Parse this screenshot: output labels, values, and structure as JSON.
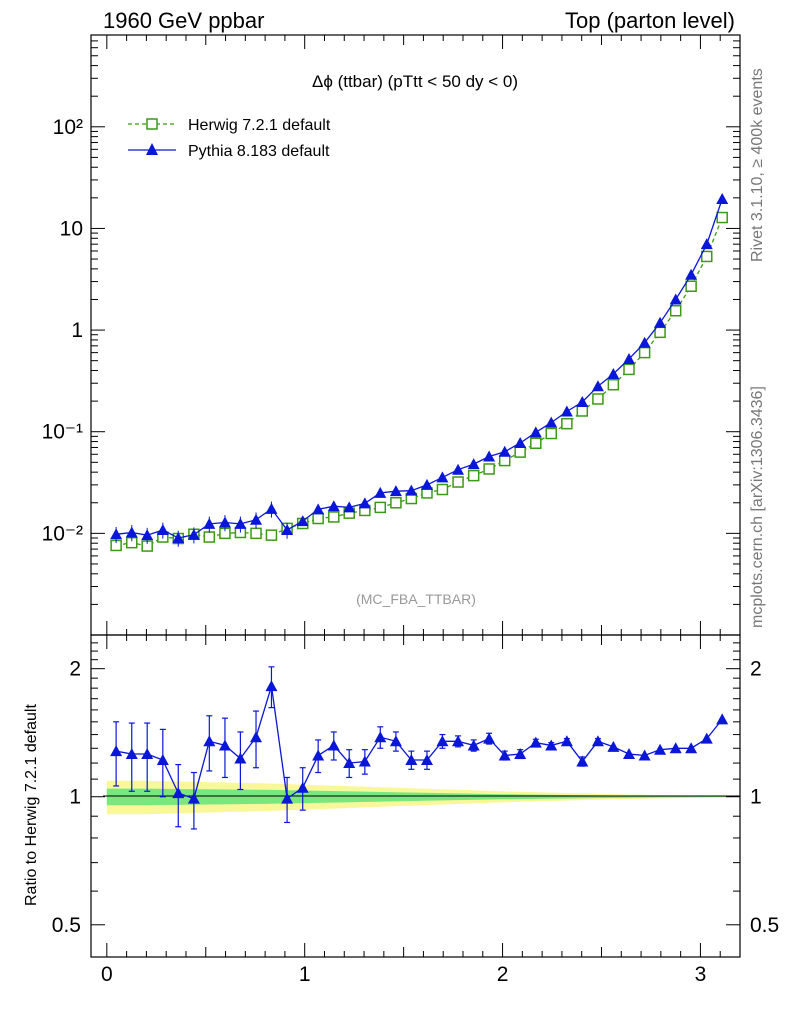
{
  "header": {
    "left_title": "1960 GeV ppbar",
    "right_title": "Top (parton level)"
  },
  "side_labels": {
    "rivet": "Rivet 3.1.10, ≥ 400k events",
    "mcplots": "mcplots.cern.ch [arXiv:1306.3436]"
  },
  "chart_data": [
    {
      "type": "line",
      "panel": "main",
      "title": "Δϕ (ttbar) (pTtt < 50 dy < 0)",
      "watermark": "(MC_FBA_TTBAR)",
      "xlabel": "",
      "ylabel": "",
      "yscale": "log",
      "xlim": [
        -0.08,
        3.2
      ],
      "ylim": [
        0.001,
        800
      ],
      "ytick_labels": [
        "10⁻²",
        "10⁻¹",
        "1",
        "10",
        "10²"
      ],
      "ytick_values": [
        0.01,
        0.1,
        1,
        10,
        100
      ],
      "series": [
        {
          "name": "Herwig 7.2.1 default",
          "color": "#3a9a14",
          "marker": "open-square",
          "linestyle": "dashed",
          "x": [
            0.047,
            0.126,
            0.204,
            0.283,
            0.361,
            0.44,
            0.518,
            0.597,
            0.675,
            0.754,
            0.832,
            0.911,
            0.99,
            1.068,
            1.147,
            1.225,
            1.304,
            1.382,
            1.461,
            1.539,
            1.618,
            1.696,
            1.775,
            1.854,
            1.932,
            2.011,
            2.089,
            2.168,
            2.246,
            2.325,
            2.403,
            2.482,
            2.56,
            2.639,
            2.718,
            2.796,
            2.875,
            2.953,
            3.032,
            3.11
          ],
          "y": [
            0.0076,
            0.0081,
            0.0075,
            0.0092,
            0.0089,
            0.0098,
            0.0092,
            0.01,
            0.0102,
            0.01,
            0.0096,
            0.0112,
            0.0125,
            0.014,
            0.0145,
            0.0158,
            0.0168,
            0.018,
            0.02,
            0.022,
            0.025,
            0.027,
            0.032,
            0.037,
            0.043,
            0.052,
            0.063,
            0.077,
            0.096,
            0.12,
            0.16,
            0.21,
            0.29,
            0.41,
            0.6,
            0.95,
            1.55,
            2.7,
            5.3,
            12.8
          ]
        },
        {
          "name": "Pythia 8.183 default",
          "color": "#0a16d8",
          "marker": "filled-triangle",
          "linestyle": "solid",
          "x": [
            0.047,
            0.126,
            0.204,
            0.283,
            0.361,
            0.44,
            0.518,
            0.597,
            0.675,
            0.754,
            0.832,
            0.911,
            0.99,
            1.068,
            1.147,
            1.225,
            1.304,
            1.382,
            1.461,
            1.539,
            1.618,
            1.696,
            1.775,
            1.854,
            1.932,
            2.011,
            2.089,
            2.168,
            2.246,
            2.325,
            2.403,
            2.482,
            2.56,
            2.639,
            2.718,
            2.796,
            2.875,
            2.953,
            3.032,
            3.11
          ],
          "y": [
            0.0098,
            0.0102,
            0.0096,
            0.0108,
            0.009,
            0.0097,
            0.0124,
            0.0128,
            0.0124,
            0.0136,
            0.0174,
            0.0108,
            0.0132,
            0.0172,
            0.0185,
            0.018,
            0.0197,
            0.025,
            0.026,
            0.0263,
            0.03,
            0.0355,
            0.0423,
            0.048,
            0.057,
            0.0635,
            0.0775,
            0.0985,
            0.123,
            0.158,
            0.196,
            0.28,
            0.37,
            0.52,
            0.75,
            1.18,
            2.0,
            3.5,
            7.0,
            19.5
          ]
        }
      ]
    },
    {
      "type": "line",
      "panel": "ratio",
      "xlabel": "",
      "ylabel": "Ratio to Herwig 7.2.1 default",
      "yscale": "log",
      "xlim": [
        -0.08,
        3.2
      ],
      "ylim": [
        0.42,
        2.4
      ],
      "xtick_labels": [
        "0",
        "1",
        "2",
        "3"
      ],
      "xtick_values": [
        0,
        1,
        2,
        3
      ],
      "ytick_labels": [
        "0.5",
        "1",
        "2"
      ],
      "ytick_values": [
        0.5,
        1,
        2
      ],
      "reference_band": {
        "x": [
          0.0,
          0.2,
          0.4,
          0.8,
          1.2,
          1.6,
          2.0,
          2.4,
          2.8,
          3.15
        ],
        "inner_half_width": [
          0.045,
          0.045,
          0.042,
          0.038,
          0.03,
          0.022,
          0.014,
          0.008,
          0.004,
          0.002
        ],
        "outer_half_width": [
          0.09,
          0.09,
          0.085,
          0.075,
          0.06,
          0.045,
          0.03,
          0.018,
          0.009,
          0.004
        ],
        "inner_color": "#7ae67e",
        "outer_color": "#f8f89a"
      },
      "series": [
        {
          "name": "Pythia 8.183 default / Herwig 7.2.1 default",
          "color": "#0a16d8",
          "marker": "filled-triangle",
          "x": [
            0.047,
            0.126,
            0.204,
            0.283,
            0.361,
            0.44,
            0.518,
            0.597,
            0.675,
            0.754,
            0.832,
            0.911,
            0.99,
            1.068,
            1.147,
            1.225,
            1.304,
            1.382,
            1.461,
            1.539,
            1.618,
            1.696,
            1.775,
            1.854,
            1.932,
            2.011,
            2.089,
            2.168,
            2.246,
            2.325,
            2.403,
            2.482,
            2.56,
            2.639,
            2.718,
            2.796,
            2.875,
            2.953,
            3.032,
            3.11
          ],
          "y": [
            1.28,
            1.26,
            1.26,
            1.22,
            1.02,
            0.99,
            1.35,
            1.32,
            1.23,
            1.38,
            1.82,
            0.99,
            1.05,
            1.25,
            1.32,
            1.2,
            1.21,
            1.38,
            1.35,
            1.22,
            1.22,
            1.35,
            1.35,
            1.32,
            1.37,
            1.25,
            1.26,
            1.34,
            1.32,
            1.35,
            1.21,
            1.35,
            1.31,
            1.26,
            1.25,
            1.29,
            1.3,
            1.3,
            1.37,
            1.52
          ],
          "yerr": [
            0.22,
            0.23,
            0.23,
            0.22,
            0.17,
            0.15,
            0.2,
            0.21,
            0.19,
            0.21,
            0.2,
            0.12,
            0.12,
            0.11,
            0.1,
            0.09,
            0.08,
            0.08,
            0.07,
            0.06,
            0.06,
            0.05,
            0.04,
            0.04,
            0.04,
            0.03,
            0.03,
            0.025,
            0.02,
            0.02,
            0.03,
            0.02,
            0.015,
            0.01,
            0.01,
            0.01,
            0.01,
            0.01,
            0.01,
            0.01
          ]
        }
      ]
    }
  ]
}
